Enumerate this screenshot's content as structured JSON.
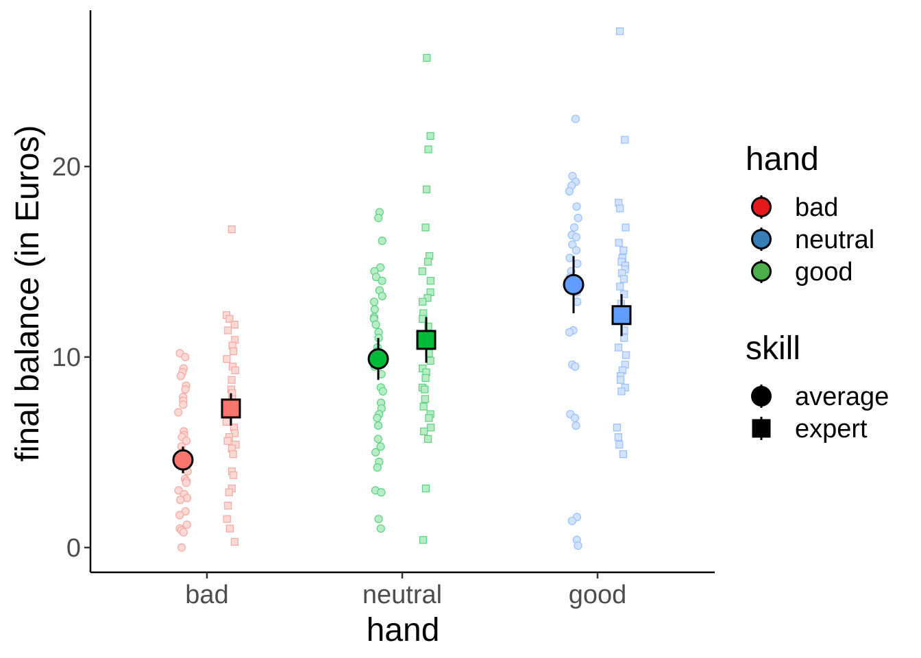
{
  "chart_data": {
    "type": "scatter",
    "xlabel": "hand",
    "ylabel": "final balance (in Euros)",
    "categories": [
      "bad",
      "neutral",
      "good"
    ],
    "ylim": [
      -1.3,
      28.2
    ],
    "yticks": [
      0,
      10,
      20
    ],
    "grid": false,
    "legend_position": "right",
    "colors": {
      "bad": "#F8766D",
      "neutral": "#00BA38",
      "good": "#619CFF",
      "legend_bad": "#E41A1C",
      "legend_neutral": "#377EB8",
      "legend_good": "#4DAF4A"
    },
    "legends": [
      {
        "title": "hand",
        "entries": [
          {
            "label": "bad",
            "color": "#E41A1C",
            "shape": "circle"
          },
          {
            "label": "neutral",
            "color": "#377EB8",
            "shape": "circle"
          },
          {
            "label": "good",
            "color": "#4DAF4A",
            "shape": "circle"
          }
        ]
      },
      {
        "title": "skill",
        "entries": [
          {
            "label": "average",
            "color": "#000000",
            "shape": "circle"
          },
          {
            "label": "expert",
            "color": "#000000",
            "shape": "square"
          }
        ]
      }
    ],
    "series": [
      {
        "hand": "bad",
        "skill": "average",
        "shape": "circle",
        "mean": 4.6,
        "ci": [
          3.9,
          5.3
        ],
        "points": [
          10.2,
          10.0,
          9.4,
          9.2,
          9.0,
          8.5,
          8.3,
          7.9,
          7.7,
          7.5,
          7.1,
          6.1,
          5.9,
          5.8,
          5.6,
          5.3,
          5.0,
          4.3,
          4.0,
          3.6,
          3.5,
          3.4,
          3.0,
          2.8,
          2.6,
          2.5,
          1.9,
          1.7,
          1.2,
          1.0,
          0.9,
          0.8,
          0.0
        ]
      },
      {
        "hand": "bad",
        "skill": "expert",
        "shape": "square",
        "mean": 7.3,
        "ci": [
          6.4,
          8.1
        ],
        "points": [
          16.7,
          12.2,
          12.0,
          11.7,
          11.4,
          10.9,
          10.6,
          10.3,
          9.9,
          9.5,
          9.3,
          8.8,
          8.3,
          8.1,
          7.8,
          7.5,
          7.0,
          6.6,
          6.3,
          6.0,
          5.8,
          5.6,
          5.4,
          5.2,
          4.9,
          4.0,
          3.8,
          3.1,
          2.9,
          2.2,
          1.5,
          1.0,
          0.3
        ]
      },
      {
        "hand": "neutral",
        "skill": "average",
        "shape": "circle",
        "mean": 9.9,
        "ci": [
          8.8,
          11.0
        ],
        "points": [
          17.6,
          17.3,
          16.1,
          14.7,
          14.5,
          14.2,
          14.0,
          13.5,
          13.2,
          12.9,
          12.5,
          12.1,
          12.0,
          11.7,
          11.3,
          11.0,
          10.5,
          10.3,
          10.0,
          9.5,
          9.1,
          8.4,
          8.2,
          7.6,
          7.3,
          7.0,
          6.8,
          6.4,
          5.7,
          5.3,
          5.0,
          4.5,
          4.2,
          3.0,
          2.9,
          1.5,
          1.0
        ]
      },
      {
        "hand": "neutral",
        "skill": "expert",
        "shape": "square",
        "mean": 10.9,
        "ci": [
          9.7,
          12.1
        ],
        "points": [
          25.7,
          21.6,
          20.9,
          18.8,
          16.8,
          15.3,
          15.0,
          14.5,
          14.0,
          13.4,
          13.1,
          12.9,
          12.3,
          12.0,
          11.6,
          11.2,
          11.0,
          10.6,
          10.2,
          9.8,
          9.4,
          9.2,
          8.9,
          8.4,
          8.3,
          7.8,
          7.4,
          7.0,
          6.8,
          6.3,
          6.1,
          5.7,
          3.1,
          0.4
        ]
      },
      {
        "hand": "good",
        "skill": "average",
        "shape": "circle",
        "mean": 13.8,
        "ci": [
          12.3,
          15.3
        ],
        "points": [
          22.5,
          19.5,
          19.2,
          19.0,
          18.7,
          17.9,
          17.3,
          16.8,
          16.4,
          16.3,
          15.9,
          15.6,
          15.2,
          14.9,
          14.5,
          14.2,
          13.7,
          13.4,
          12.9,
          11.4,
          11.3,
          9.6,
          9.5,
          7.0,
          6.8,
          6.4,
          1.6,
          1.4,
          0.4,
          0.1
        ]
      },
      {
        "hand": "good",
        "skill": "expert",
        "shape": "square",
        "mean": 12.2,
        "ci": [
          11.1,
          13.3
        ],
        "points": [
          27.1,
          21.4,
          18.1,
          17.8,
          16.8,
          16.0,
          15.6,
          15.2,
          15.0,
          14.8,
          14.6,
          14.4,
          14.1,
          13.7,
          13.3,
          12.8,
          12.3,
          11.9,
          11.4,
          11.0,
          10.5,
          10.1,
          9.6,
          9.3,
          9.0,
          8.8,
          8.4,
          8.2,
          6.3,
          5.8,
          5.4,
          4.9
        ]
      }
    ]
  }
}
